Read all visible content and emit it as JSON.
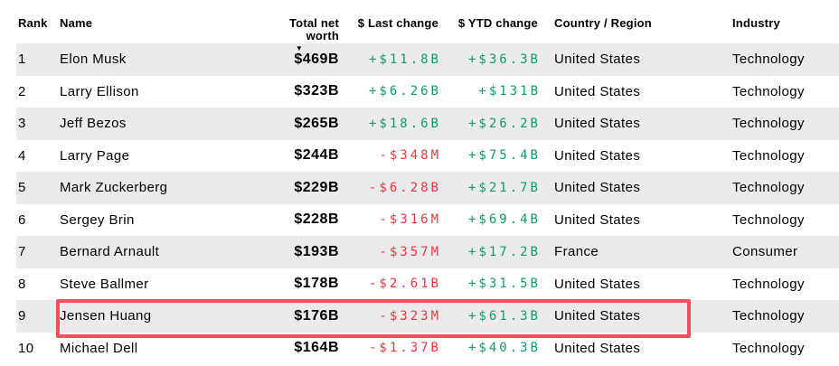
{
  "table": {
    "columns": [
      {
        "key": "rank",
        "label": "Rank"
      },
      {
        "key": "name",
        "label": "Name"
      },
      {
        "key": "net_worth",
        "label": "Total net worth",
        "sorted": "descending"
      },
      {
        "key": "last_change",
        "label": "$ Last change"
      },
      {
        "key": "ytd_change",
        "label": "$ YTD change"
      },
      {
        "key": "country",
        "label": "Country / Region"
      },
      {
        "key": "industry",
        "label": "Industry"
      }
    ],
    "sort_icon": "▼",
    "highlighted_rank": "9",
    "rows": [
      {
        "rank": "1",
        "name": "Elon Musk",
        "net_worth": "$469B",
        "last_change": "+$11.8B",
        "last_dir": "pos",
        "ytd_change": "+$36.3B",
        "ytd_dir": "pos",
        "country": "United States",
        "industry": "Technology"
      },
      {
        "rank": "2",
        "name": "Larry Ellison",
        "net_worth": "$323B",
        "last_change": "+$6.26B",
        "last_dir": "pos",
        "ytd_change": "+$131B",
        "ytd_dir": "pos",
        "country": "United States",
        "industry": "Technology"
      },
      {
        "rank": "3",
        "name": "Jeff Bezos",
        "net_worth": "$265B",
        "last_change": "+$18.6B",
        "last_dir": "pos",
        "ytd_change": "+$26.2B",
        "ytd_dir": "pos",
        "country": "United States",
        "industry": "Technology"
      },
      {
        "rank": "4",
        "name": "Larry Page",
        "net_worth": "$244B",
        "last_change": "-$348M",
        "last_dir": "neg",
        "ytd_change": "+$75.4B",
        "ytd_dir": "pos",
        "country": "United States",
        "industry": "Technology"
      },
      {
        "rank": "5",
        "name": "Mark Zuckerberg",
        "net_worth": "$229B",
        "last_change": "-$6.28B",
        "last_dir": "neg",
        "ytd_change": "+$21.7B",
        "ytd_dir": "pos",
        "country": "United States",
        "industry": "Technology"
      },
      {
        "rank": "6",
        "name": "Sergey Brin",
        "net_worth": "$228B",
        "last_change": "-$316M",
        "last_dir": "neg",
        "ytd_change": "+$69.4B",
        "ytd_dir": "pos",
        "country": "United States",
        "industry": "Technology"
      },
      {
        "rank": "7",
        "name": "Bernard Arnault",
        "net_worth": "$193B",
        "last_change": "-$357M",
        "last_dir": "neg",
        "ytd_change": "+$17.2B",
        "ytd_dir": "pos",
        "country": "France",
        "industry": "Consumer"
      },
      {
        "rank": "8",
        "name": "Steve Ballmer",
        "net_worth": "$178B",
        "last_change": "-$2.61B",
        "last_dir": "neg",
        "ytd_change": "+$31.5B",
        "ytd_dir": "pos",
        "country": "United States",
        "industry": "Technology"
      },
      {
        "rank": "9",
        "name": "Jensen Huang",
        "net_worth": "$176B",
        "last_change": "-$323M",
        "last_dir": "neg",
        "ytd_change": "+$61.3B",
        "ytd_dir": "pos",
        "country": "United States",
        "industry": "Technology"
      },
      {
        "rank": "10",
        "name": "Michael Dell",
        "net_worth": "$164B",
        "last_change": "-$1.37B",
        "last_dir": "neg",
        "ytd_change": "+$40.3B",
        "ytd_dir": "pos",
        "country": "United States",
        "industry": "Technology"
      }
    ]
  },
  "colors": {
    "positive": "#0d9b72",
    "negative": "#f7333e",
    "highlight_border": "#f2505c",
    "row_stripe": "#ebebeb",
    "text": "#000000"
  }
}
